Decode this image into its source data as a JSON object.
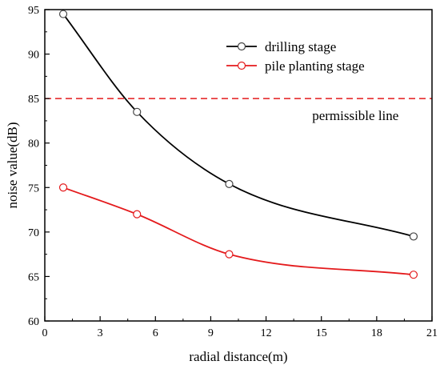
{
  "chart_data": {
    "type": "line",
    "title": "",
    "xlabel": "radial distance(m)",
    "ylabel": "noise value(dB)",
    "xlim": [
      0,
      21
    ],
    "ylim": [
      60,
      95
    ],
    "xticks": [
      0,
      3,
      6,
      9,
      12,
      15,
      18,
      21
    ],
    "yticks": [
      60,
      65,
      70,
      75,
      80,
      85,
      90,
      95
    ],
    "grid": false,
    "legend_position": "top-right",
    "series": [
      {
        "name": "drilling stage",
        "color": "#000000",
        "marker": "open-circle",
        "x": [
          1,
          5,
          10,
          20
        ],
        "values": [
          94.5,
          83.5,
          75.4,
          69.5
        ]
      },
      {
        "name": "pile planting stage",
        "color": "#e41a1c",
        "marker": "open-circle",
        "x": [
          1,
          5,
          10,
          20
        ],
        "values": [
          75.0,
          72.0,
          67.5,
          65.2
        ]
      }
    ],
    "reference_lines": [
      {
        "label": "permissible line",
        "y": 85,
        "color": "#e41a1c",
        "style": "dashed"
      }
    ]
  }
}
